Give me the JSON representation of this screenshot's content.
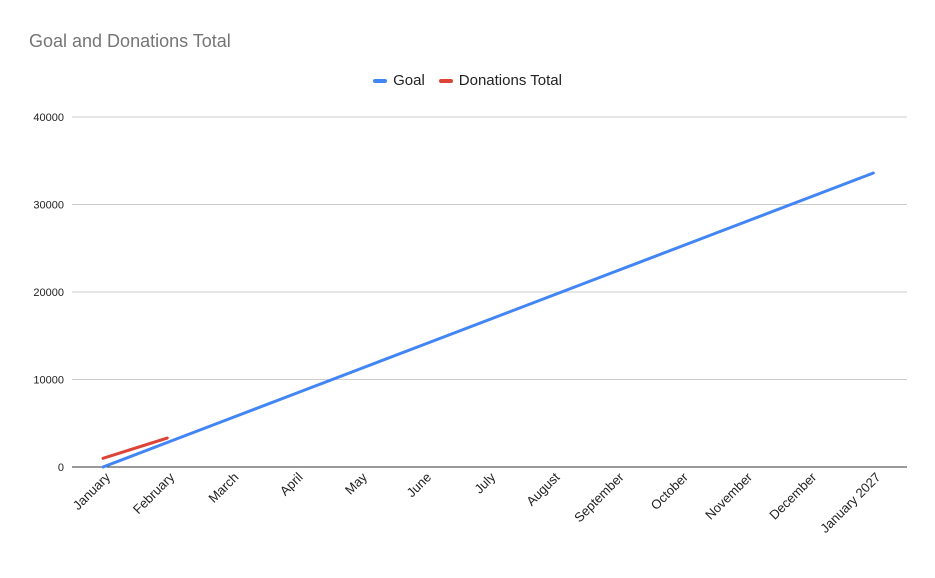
{
  "chart_data": {
    "type": "line",
    "title": "Goal and Donations Total",
    "xlabel": "",
    "ylabel": "",
    "categories": [
      "January",
      "February",
      "March",
      "April",
      "May",
      "June",
      "July",
      "August",
      "September",
      "October",
      "November",
      "December",
      "January 2027"
    ],
    "ylim": [
      0,
      40000
    ],
    "yticks": [
      0,
      10000,
      20000,
      30000,
      40000
    ],
    "grid": true,
    "legend_position": "top",
    "series": [
      {
        "name": "Goal",
        "color": "#4285f4",
        "values": [
          0,
          2800,
          5600,
          8400,
          11200,
          14000,
          16800,
          19600,
          22400,
          25200,
          28000,
          30800,
          33600
        ]
      },
      {
        "name": "Donations Total",
        "color": "#db4437",
        "values": [
          1000,
          3300,
          null,
          null,
          null,
          null,
          null,
          null,
          null,
          null,
          null,
          null,
          null
        ]
      }
    ]
  }
}
